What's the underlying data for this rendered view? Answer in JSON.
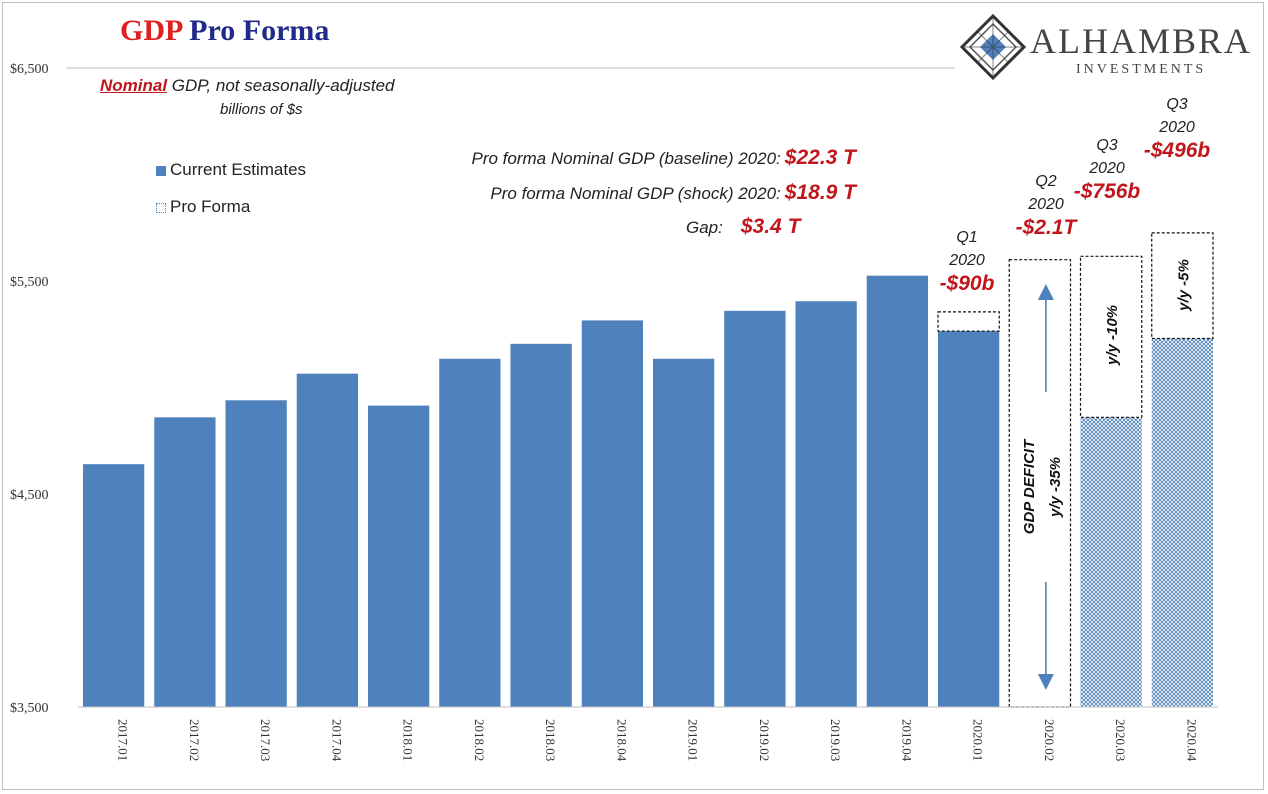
{
  "title": {
    "part1": "GDP",
    "part2": "Pro Forma"
  },
  "logo": {
    "name": "ALHAMBRA",
    "sub": "INVESTMENTS"
  },
  "subtitle": {
    "highlight": "Nominal",
    "rest": " GDP, not seasonally-adjusted",
    "units": "billions of $s"
  },
  "legend": [
    {
      "label": "Current Estimates",
      "style": "solid"
    },
    {
      "label": "Pro Forma",
      "style": "hatched"
    }
  ],
  "proforma_notes": [
    {
      "label": "Pro forma Nominal GDP (baseline) 2020:",
      "value": "$22.3  T"
    },
    {
      "label": "Pro forma Nominal GDP (shock) 2020:",
      "value": "$18.9  T"
    }
  ],
  "gap_note": {
    "label": "Gap:",
    "value": "$3.4  T"
  },
  "quarter_annotations": [
    {
      "quarter": "Q1",
      "year": "2020",
      "delta": "-$90b"
    },
    {
      "quarter": "Q2",
      "year": "2020",
      "delta": "-$2.1T"
    },
    {
      "quarter": "Q3",
      "year": "2020",
      "delta": "-$756b"
    },
    {
      "quarter": "Q3",
      "year": "2020",
      "delta": "-$496b"
    }
  ],
  "inner_labels": [
    {
      "bar": "2020.02",
      "lines": [
        "GDP DEFICIT",
        "y/y -35%"
      ]
    },
    {
      "bar": "2020.03",
      "lines": [
        "y/y -10%"
      ]
    },
    {
      "bar": "2020.04",
      "lines": [
        "y/y -5%"
      ]
    }
  ],
  "colors": {
    "bar": "#4f81bd",
    "accent_red": "#c0161c",
    "title_red": "#e02020",
    "title_blue": "#1f2a8a",
    "arrow": "#4f81bd"
  },
  "chart_data": {
    "type": "bar",
    "categories": [
      "2017.01",
      "2017.02",
      "2017.03",
      "2017.04",
      "2018.01",
      "2018.02",
      "2018.03",
      "2018.04",
      "2019.01",
      "2019.02",
      "2019.03",
      "2019.04",
      "2020.01",
      "2020.02",
      "2020.03",
      "2020.04"
    ],
    "series": [
      {
        "name": "Current Estimates",
        "values": [
          4640,
          4860,
          4940,
          5065,
          4915,
          5135,
          5205,
          5315,
          5135,
          5360,
          5405,
          5525,
          5265,
          null,
          null,
          null
        ]
      },
      {
        "name": "Pro Forma",
        "values": [
          null,
          null,
          null,
          null,
          null,
          null,
          null,
          null,
          null,
          null,
          null,
          null,
          null,
          3500,
          4860,
          5230
        ]
      }
    ],
    "baseline_expected": [
      null,
      null,
      null,
      null,
      null,
      null,
      null,
      null,
      null,
      null,
      null,
      null,
      5355,
      5600,
      5616,
      5726
    ],
    "ylim": [
      3500,
      6500
    ],
    "yticks": [
      3500,
      4500,
      5500,
      6500
    ],
    "ytick_labels": [
      "$3,500",
      "$4,500",
      "$5,500",
      "$6,500"
    ],
    "grid": false,
    "legend_position": "top-left"
  }
}
